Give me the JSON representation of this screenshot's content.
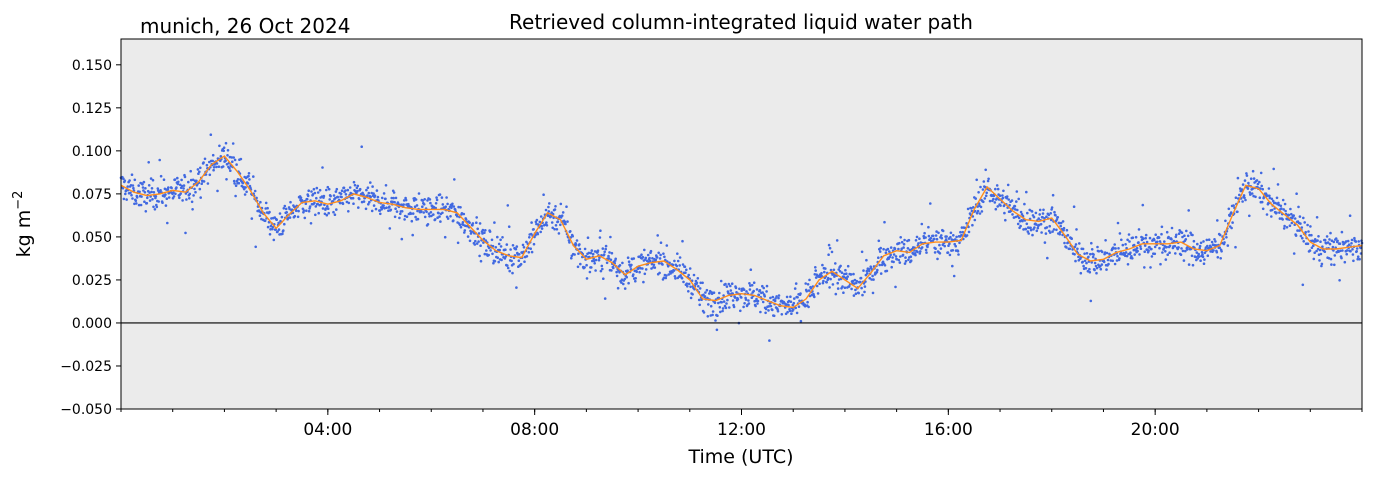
{
  "header": {
    "location_date": "munich, 26 Oct 2024"
  },
  "chart_data": {
    "type": "scatter",
    "title": "Retrieved column-integrated liquid water path",
    "xlabel": "Time (UTC)",
    "ylabel_base": "kg m",
    "ylabel_exp": "−2",
    "xlim_hours": [
      0,
      24
    ],
    "ylim": [
      -0.05,
      0.165
    ],
    "grid": false,
    "background": "#ebebeb",
    "reference_line_y": 0.0,
    "x_ticks": [
      {
        "hour": 4,
        "label": "04:00"
      },
      {
        "hour": 8,
        "label": "08:00"
      },
      {
        "hour": 12,
        "label": "12:00"
      },
      {
        "hour": 16,
        "label": "16:00"
      },
      {
        "hour": 20,
        "label": "20:00"
      }
    ],
    "y_ticks": [
      {
        "value": 0.15,
        "label": "0.150"
      },
      {
        "value": 0.125,
        "label": "0.125"
      },
      {
        "value": 0.1,
        "label": "0.100"
      },
      {
        "value": 0.075,
        "label": "0.075"
      },
      {
        "value": 0.05,
        "label": "0.050"
      },
      {
        "value": 0.025,
        "label": "0.025"
      },
      {
        "value": 0.0,
        "label": "0.000"
      },
      {
        "value": -0.025,
        "label": "−0.025"
      },
      {
        "value": -0.05,
        "label": "−0.050"
      }
    ],
    "series": [
      {
        "kind": "scatter",
        "color": "#4169e1",
        "x_hours": [
          0.0,
          0.25,
          0.5,
          0.75,
          1.0,
          1.25,
          1.5,
          1.75,
          2.0,
          2.25,
          2.5,
          2.75,
          3.0,
          3.25,
          3.5,
          3.75,
          4.0,
          4.25,
          4.5,
          4.75,
          5.0,
          5.25,
          5.5,
          5.75,
          6.0,
          6.25,
          6.5,
          6.75,
          7.0,
          7.25,
          7.5,
          7.75,
          8.0,
          8.25,
          8.5,
          8.75,
          9.0,
          9.25,
          9.5,
          9.75,
          10.0,
          10.25,
          10.5,
          10.75,
          11.0,
          11.25,
          11.5,
          11.75,
          12.0,
          12.25,
          12.5,
          12.75,
          13.0,
          13.25,
          13.5,
          13.75,
          14.0,
          14.25,
          14.5,
          14.75,
          15.0,
          15.25,
          15.5,
          15.75,
          16.0,
          16.25,
          16.5,
          16.75,
          17.0,
          17.25,
          17.5,
          17.75,
          18.0,
          18.25,
          18.5,
          18.75,
          19.0,
          19.25,
          19.5,
          19.75,
          20.0,
          20.25,
          20.5,
          20.75,
          21.0,
          21.25,
          21.5,
          21.75,
          22.0,
          22.25,
          22.5,
          22.75,
          23.0,
          23.25,
          23.5,
          23.75,
          24.0
        ],
        "y_center": [
          0.08,
          0.076,
          0.074,
          0.075,
          0.077,
          0.076,
          0.082,
          0.092,
          0.097,
          0.088,
          0.077,
          0.064,
          0.055,
          0.063,
          0.07,
          0.071,
          0.069,
          0.071,
          0.075,
          0.073,
          0.07,
          0.069,
          0.067,
          0.066,
          0.066,
          0.066,
          0.064,
          0.056,
          0.048,
          0.042,
          0.039,
          0.038,
          0.052,
          0.064,
          0.06,
          0.045,
          0.037,
          0.039,
          0.035,
          0.028,
          0.033,
          0.035,
          0.036,
          0.031,
          0.025,
          0.014,
          0.013,
          0.016,
          0.017,
          0.016,
          0.013,
          0.01,
          0.009,
          0.014,
          0.025,
          0.03,
          0.025,
          0.02,
          0.029,
          0.039,
          0.042,
          0.041,
          0.046,
          0.047,
          0.047,
          0.048,
          0.066,
          0.079,
          0.072,
          0.065,
          0.06,
          0.059,
          0.061,
          0.051,
          0.04,
          0.036,
          0.037,
          0.041,
          0.043,
          0.046,
          0.046,
          0.046,
          0.047,
          0.043,
          0.042,
          0.045,
          0.063,
          0.08,
          0.078,
          0.069,
          0.063,
          0.057,
          0.047,
          0.043,
          0.043,
          0.044,
          0.045
        ]
      },
      {
        "kind": "line",
        "color": "#ff8c1a",
        "x_hours": [
          0.0,
          0.25,
          0.5,
          0.75,
          1.0,
          1.25,
          1.5,
          1.75,
          2.0,
          2.25,
          2.5,
          2.75,
          3.0,
          3.25,
          3.5,
          3.75,
          4.0,
          4.25,
          4.5,
          4.75,
          5.0,
          5.25,
          5.5,
          5.75,
          6.0,
          6.25,
          6.5,
          6.75,
          7.0,
          7.25,
          7.5,
          7.75,
          8.0,
          8.25,
          8.5,
          8.75,
          9.0,
          9.25,
          9.5,
          9.75,
          10.0,
          10.25,
          10.5,
          10.75,
          11.0,
          11.25,
          11.5,
          11.75,
          12.0,
          12.25,
          12.5,
          12.75,
          13.0,
          13.25,
          13.5,
          13.75,
          14.0,
          14.25,
          14.5,
          14.75,
          15.0,
          15.25,
          15.5,
          15.75,
          16.0,
          16.25,
          16.5,
          16.75,
          17.0,
          17.25,
          17.5,
          17.75,
          18.0,
          18.25,
          18.5,
          18.75,
          19.0,
          19.25,
          19.5,
          19.75,
          20.0,
          20.25,
          20.5,
          20.75,
          21.0,
          21.25,
          21.5,
          21.75,
          22.0,
          22.25,
          22.5,
          22.75,
          23.0,
          23.25,
          23.5,
          23.75,
          24.0
        ],
        "y_values": [
          0.08,
          0.076,
          0.074,
          0.075,
          0.077,
          0.076,
          0.082,
          0.092,
          0.097,
          0.088,
          0.077,
          0.064,
          0.055,
          0.063,
          0.07,
          0.071,
          0.069,
          0.071,
          0.075,
          0.073,
          0.07,
          0.069,
          0.067,
          0.066,
          0.066,
          0.066,
          0.064,
          0.056,
          0.048,
          0.042,
          0.039,
          0.038,
          0.052,
          0.064,
          0.06,
          0.045,
          0.037,
          0.039,
          0.035,
          0.028,
          0.033,
          0.035,
          0.036,
          0.031,
          0.025,
          0.014,
          0.013,
          0.016,
          0.017,
          0.016,
          0.013,
          0.01,
          0.009,
          0.014,
          0.025,
          0.03,
          0.025,
          0.02,
          0.029,
          0.039,
          0.042,
          0.041,
          0.046,
          0.047,
          0.047,
          0.048,
          0.066,
          0.079,
          0.072,
          0.065,
          0.06,
          0.059,
          0.061,
          0.051,
          0.04,
          0.036,
          0.037,
          0.041,
          0.043,
          0.046,
          0.046,
          0.046,
          0.047,
          0.043,
          0.042,
          0.045,
          0.063,
          0.08,
          0.078,
          0.069,
          0.063,
          0.057,
          0.047,
          0.043,
          0.043,
          0.044,
          0.045
        ]
      }
    ]
  }
}
